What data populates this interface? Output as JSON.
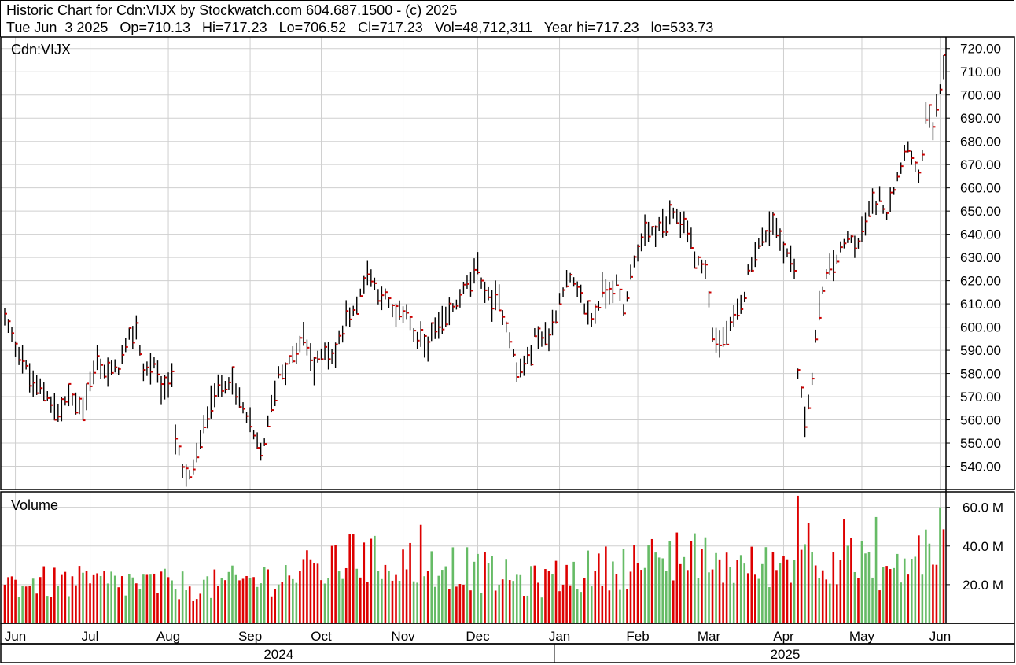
{
  "header": {
    "line1": "Historic Chart for Cdn:VIJX by Stockwatch.com 604.687.1500 - (c) 2025",
    "line2": "Tue Jun  3 2025   Op=710.13   Hi=717.23   Lo=706.52   Cl=717.23   Vol=48,712,311   Year hi=717.23   lo=533.73"
  },
  "chart_data": [
    {
      "type": "ohlc",
      "title": "Cdn:VIJX",
      "ylim": [
        530,
        725
      ],
      "y_ticks": [
        "720.00",
        "710.00",
        "700.00",
        "690.00",
        "680.00",
        "670.00",
        "660.00",
        "650.00",
        "640.00",
        "630.00",
        "620.00",
        "610.00",
        "600.00",
        "590.00",
        "580.00",
        "570.00",
        "560.00",
        "550.00",
        "540.00"
      ],
      "grid": true,
      "up_color": "#000000",
      "close_tick_color": "#cc0000",
      "anchors": [
        [
          "2024-05-29",
          604
        ],
        [
          "2024-05-31",
          595
        ],
        [
          "2024-06-05",
          586
        ],
        [
          "2024-06-10",
          575
        ],
        [
          "2024-06-14",
          571
        ],
        [
          "2024-06-19",
          563
        ],
        [
          "2024-06-24",
          570
        ],
        [
          "2024-06-28",
          566
        ],
        [
          "2024-07-04",
          585
        ],
        [
          "2024-07-09",
          580
        ],
        [
          "2024-07-12",
          583
        ],
        [
          "2024-07-17",
          595
        ],
        [
          "2024-07-19",
          600
        ],
        [
          "2024-07-23",
          581
        ],
        [
          "2024-07-26",
          583
        ],
        [
          "2024-07-31",
          572
        ],
        [
          "2024-08-02",
          580
        ],
        [
          "2024-08-05",
          553
        ],
        [
          "2024-08-07",
          537
        ],
        [
          "2024-08-09",
          535
        ],
        [
          "2024-08-14",
          550
        ],
        [
          "2024-08-19",
          570
        ],
        [
          "2024-08-22",
          574
        ],
        [
          "2024-08-26",
          578
        ],
        [
          "2024-08-30",
          565
        ],
        [
          "2024-09-04",
          553
        ],
        [
          "2024-09-06",
          545
        ],
        [
          "2024-09-10",
          558
        ],
        [
          "2024-09-13",
          580
        ],
        [
          "2024-09-19",
          586
        ],
        [
          "2024-09-24",
          596
        ],
        [
          "2024-09-27",
          582
        ],
        [
          "2024-10-02",
          591
        ],
        [
          "2024-10-07",
          588
        ],
        [
          "2024-10-10",
          605
        ],
        [
          "2024-10-15",
          609
        ],
        [
          "2024-10-18",
          625
        ],
        [
          "2024-10-22",
          618
        ],
        [
          "2024-10-25",
          612
        ],
        [
          "2024-10-30",
          603
        ],
        [
          "2024-11-04",
          608
        ],
        [
          "2024-11-06",
          596
        ],
        [
          "2024-11-11",
          592
        ],
        [
          "2024-11-14",
          598
        ],
        [
          "2024-11-19",
          602
        ],
        [
          "2024-11-22",
          610
        ],
        [
          "2024-11-27",
          618
        ],
        [
          "2024-12-02",
          625
        ],
        [
          "2024-12-05",
          612
        ],
        [
          "2024-12-10",
          611
        ],
        [
          "2024-12-13",
          596
        ],
        [
          "2024-12-17",
          580
        ],
        [
          "2024-12-20",
          585
        ],
        [
          "2024-12-24",
          596
        ],
        [
          "2024-12-30",
          596
        ],
        [
          "2025-01-03",
          617
        ],
        [
          "2025-01-07",
          620
        ],
        [
          "2025-01-10",
          612
        ],
        [
          "2025-01-15",
          603
        ],
        [
          "2025-01-20",
          615
        ],
        [
          "2025-01-24",
          618
        ],
        [
          "2025-01-28",
          607
        ],
        [
          "2025-01-31",
          630
        ],
        [
          "2025-02-05",
          640
        ],
        [
          "2025-02-10",
          641
        ],
        [
          "2025-02-13",
          645
        ],
        [
          "2025-02-18",
          648
        ],
        [
          "2025-02-21",
          643
        ],
        [
          "2025-02-25",
          630
        ],
        [
          "2025-02-28",
          625
        ],
        [
          "2025-03-04",
          597
        ],
        [
          "2025-03-06",
          593
        ],
        [
          "2025-03-11",
          600
        ],
        [
          "2025-03-14",
          608
        ],
        [
          "2025-03-19",
          630
        ],
        [
          "2025-03-24",
          638
        ],
        [
          "2025-03-27",
          646
        ],
        [
          "2025-04-01",
          635
        ],
        [
          "2025-04-04",
          625
        ],
        [
          "2025-04-07",
          580
        ],
        [
          "2025-04-09",
          560
        ],
        [
          "2025-04-11",
          578
        ],
        [
          "2025-04-14",
          595
        ],
        [
          "2025-04-16",
          618
        ],
        [
          "2025-04-22",
          630
        ],
        [
          "2025-04-25",
          638
        ],
        [
          "2025-04-30",
          635
        ],
        [
          "2025-05-05",
          650
        ],
        [
          "2025-05-08",
          655
        ],
        [
          "2025-05-12",
          650
        ],
        [
          "2025-05-15",
          665
        ],
        [
          "2025-05-20",
          680
        ],
        [
          "2025-05-23",
          662
        ],
        [
          "2025-05-27",
          690
        ],
        [
          "2025-05-29",
          685
        ],
        [
          "2025-06-02",
          700
        ],
        [
          "2025-06-03",
          717.23
        ]
      ],
      "last_bar": {
        "date": "2025-06-03",
        "open": 710.13,
        "high": 717.23,
        "low": 706.52,
        "close": 717.23
      }
    },
    {
      "type": "bar",
      "title": "Volume",
      "ylim": [
        0,
        68000000
      ],
      "y_ticks": [
        "60.0 M",
        "40.0 M",
        "20.0 M"
      ],
      "grid": true,
      "up_color": "#66bb66",
      "down_color": "#dd0000",
      "level_anchors": [
        [
          "2024-05-29",
          22000000
        ],
        [
          "2024-07-15",
          22000000
        ],
        [
          "2024-08-15",
          20000000
        ],
        [
          "2024-09-15",
          26000000
        ],
        [
          "2024-10-20",
          34000000
        ],
        [
          "2024-11-20",
          32000000
        ],
        [
          "2024-12-20",
          22000000
        ],
        [
          "2025-01-20",
          30000000
        ],
        [
          "2025-02-20",
          36000000
        ],
        [
          "2025-03-20",
          30000000
        ],
        [
          "2025-04-15",
          38000000
        ],
        [
          "2025-05-15",
          28000000
        ],
        [
          "2025-06-03",
          48712311
        ]
      ],
      "spikes": [
        [
          "2024-10-11",
          46000000
        ],
        [
          "2024-10-14",
          46000000
        ],
        [
          "2024-11-08",
          51000000
        ],
        [
          "2025-02-18",
          47000000
        ],
        [
          "2025-04-07",
          66000000
        ],
        [
          "2025-04-10",
          52000000
        ],
        [
          "2025-04-24",
          54000000
        ],
        [
          "2025-05-07",
          55000000
        ],
        [
          "2025-06-02",
          60000000
        ]
      ]
    }
  ],
  "time_axis": {
    "months": [
      {
        "label": "Jun",
        "date": "2024-06-03"
      },
      {
        "label": "Jul",
        "date": "2024-07-02"
      },
      {
        "label": "Aug",
        "date": "2024-08-01"
      },
      {
        "label": "Sep",
        "date": "2024-09-03"
      },
      {
        "label": "Oct",
        "date": "2024-10-01"
      },
      {
        "label": "Nov",
        "date": "2024-11-01"
      },
      {
        "label": "Dec",
        "date": "2024-12-02"
      },
      {
        "label": "Jan",
        "date": "2025-01-02"
      },
      {
        "label": "Feb",
        "date": "2025-02-03"
      },
      {
        "label": "Mar",
        "date": "2025-03-03"
      },
      {
        "label": "Apr",
        "date": "2025-04-01"
      },
      {
        "label": "May",
        "date": "2025-05-01"
      },
      {
        "label": "Jun",
        "date": "2025-06-02"
      }
    ],
    "years": [
      {
        "label": "2024",
        "from": "2024-05-29",
        "to": "2024-12-31"
      },
      {
        "label": "2025",
        "from": "2025-01-01",
        "to": "2025-06-03"
      }
    ]
  }
}
